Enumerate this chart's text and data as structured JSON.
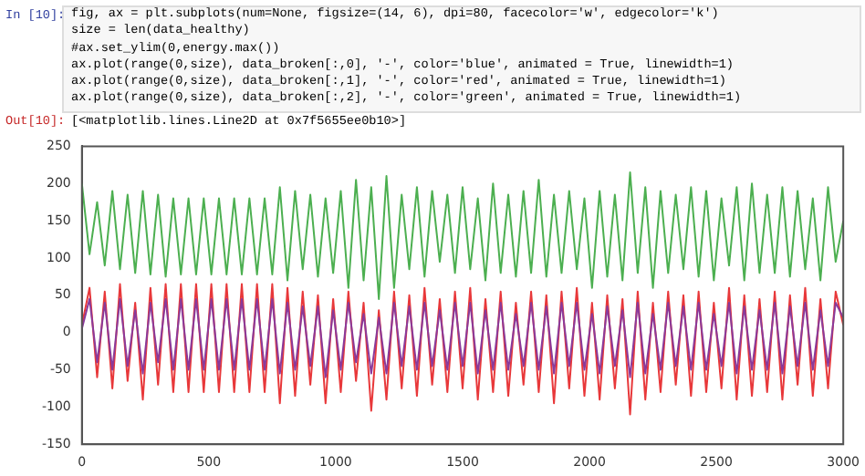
{
  "chart_data": {
    "type": "line",
    "annotations": [
      "In [10]:",
      "fig, ax = plt.subplots(num=None, figsize=(14, 6), dpi=80, facecolor='w', edgecolor='k')",
      "size = len(data_healthy)",
      "#ax.set_ylim(0,energy.max())",
      "ax.plot(range(0,size), data_broken[:,0], '-', color='blue', animated = True, linewidth=1)",
      "ax.plot(range(0,size), data_broken[:,1], '-', color='red', animated = True, linewidth=1)",
      "ax.plot(range(0,size), data_broken[:,2], '-', color='green', animated = True, linewidth=1)",
      "Out[10]:",
      "[<matplotlib.lines.Line2D at 0x7f5655ee0b10>]"
    ],
    "x": [
      0,
      30,
      60,
      90,
      120,
      150,
      180,
      210,
      240,
      270,
      300,
      330,
      360,
      390,
      420,
      450,
      480,
      510,
      540,
      570,
      600,
      630,
      660,
      690,
      720,
      750,
      780,
      810,
      840,
      870,
      900,
      930,
      960,
      990,
      1020,
      1050,
      1080,
      1110,
      1140,
      1170,
      1200,
      1230,
      1260,
      1290,
      1320,
      1350,
      1380,
      1410,
      1440,
      1470,
      1500,
      1530,
      1560,
      1590,
      1620,
      1650,
      1680,
      1710,
      1740,
      1770,
      1800,
      1830,
      1860,
      1890,
      1920,
      1950,
      1980,
      2010,
      2040,
      2070,
      2100,
      2130,
      2160,
      2190,
      2220,
      2250,
      2280,
      2310,
      2340,
      2370,
      2400,
      2430,
      2460,
      2490,
      2520,
      2550,
      2580,
      2610,
      2640,
      2670,
      2700,
      2730,
      2760,
      2790,
      2820,
      2850,
      2880,
      2910,
      2940,
      2970,
      3000
    ],
    "series": [
      {
        "color": "#8a3a9a",
        "values": [
          5,
          45,
          -40,
          40,
          -50,
          45,
          -45,
          30,
          -55,
          40,
          -40,
          45,
          -50,
          45,
          -50,
          45,
          -50,
          45,
          -50,
          45,
          -50,
          45,
          -50,
          45,
          -50,
          45,
          -55,
          40,
          -50,
          35,
          -45,
          35,
          -60,
          30,
          -50,
          40,
          -40,
          25,
          -55,
          20,
          -55,
          40,
          -45,
          35,
          -50,
          40,
          -45,
          30,
          -50,
          40,
          -45,
          40,
          -55,
          30,
          -50,
          40,
          -50,
          25,
          -45,
          40,
          -50,
          35,
          -55,
          40,
          -45,
          40,
          -50,
          25,
          -55,
          35,
          -45,
          30,
          -60,
          40,
          -55,
          25,
          -50,
          40,
          -45,
          35,
          -50,
          40,
          -50,
          25,
          -45,
          40,
          -55,
          35,
          -50,
          30,
          -50,
          40,
          -55,
          35,
          -45,
          40,
          -50,
          30,
          -45,
          40,
          20
        ]
      },
      {
        "color": "#e8383a",
        "values": [
          10,
          60,
          -60,
          55,
          -75,
          65,
          -65,
          40,
          -90,
          60,
          -70,
          65,
          -80,
          65,
          -80,
          65,
          -80,
          65,
          -80,
          65,
          -80,
          65,
          -80,
          65,
          -80,
          65,
          -95,
          60,
          -85,
          55,
          -70,
          50,
          -95,
          45,
          -80,
          55,
          -65,
          40,
          -105,
          30,
          -90,
          55,
          -75,
          50,
          -85,
          60,
          -70,
          45,
          -80,
          55,
          -75,
          60,
          -90,
          45,
          -80,
          55,
          -85,
          40,
          -70,
          55,
          -80,
          50,
          -95,
          55,
          -75,
          60,
          -85,
          40,
          -90,
          50,
          -75,
          45,
          -110,
          55,
          -90,
          40,
          -80,
          55,
          -70,
          50,
          -85,
          55,
          -80,
          40,
          -75,
          60,
          -90,
          50,
          -85,
          45,
          -80,
          55,
          -90,
          50,
          -70,
          60,
          -85,
          45,
          -75,
          55,
          10
        ]
      },
      {
        "color": "#4caf50",
        "values": [
          200,
          105,
          175,
          90,
          190,
          85,
          185,
          80,
          190,
          78,
          185,
          75,
          180,
          78,
          180,
          78,
          180,
          78,
          180,
          78,
          180,
          78,
          180,
          78,
          180,
          78,
          195,
          70,
          190,
          85,
          185,
          75,
          180,
          80,
          190,
          60,
          205,
          70,
          195,
          45,
          210,
          60,
          185,
          85,
          195,
          75,
          190,
          95,
          185,
          80,
          195,
          85,
          180,
          70,
          200,
          80,
          185,
          75,
          190,
          80,
          205,
          75,
          185,
          80,
          190,
          85,
          180,
          60,
          190,
          75,
          185,
          70,
          215,
          80,
          195,
          60,
          190,
          80,
          185,
          85,
          195,
          75,
          190,
          70,
          180,
          90,
          195,
          70,
          200,
          80,
          185,
          80,
          195,
          75,
          190,
          85,
          180,
          70,
          195,
          95,
          150
        ]
      }
    ],
    "xlim": [
      0,
      3000
    ],
    "xticks": [
      0,
      500,
      1000,
      1500,
      2000,
      2500,
      3000
    ],
    "ylim": [
      -150,
      250
    ],
    "yticks": [
      -150,
      -100,
      -50,
      0,
      50,
      100,
      150,
      200,
      250
    ]
  }
}
